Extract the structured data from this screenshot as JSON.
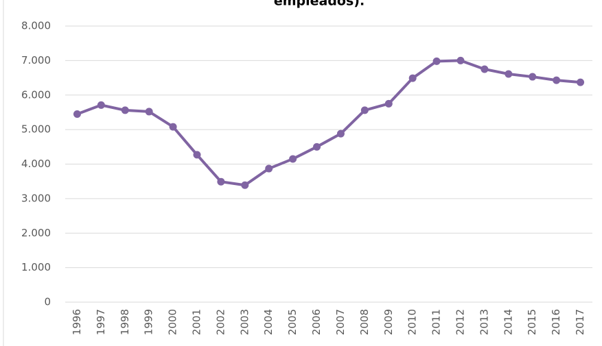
{
  "chart_data": {
    "type": "line",
    "title": "empleados).",
    "categories": [
      "1996",
      "1997",
      "1998",
      "1999",
      "2000",
      "2001",
      "2002",
      "2003",
      "2004",
      "2005",
      "2006",
      "2007",
      "2008",
      "2009",
      "2010",
      "2011",
      "2012",
      "2013",
      "2014",
      "2015",
      "2016",
      "2017"
    ],
    "series": [
      {
        "color": "#8064a2",
        "values": [
          5450,
          5710,
          5560,
          5520,
          5080,
          4270,
          3490,
          3390,
          3870,
          4150,
          4500,
          4880,
          5560,
          5750,
          6490,
          6980,
          7000,
          6750,
          6610,
          6530,
          6430,
          6370
        ]
      }
    ],
    "ylim": [
      0,
      8000
    ],
    "yticks": [
      0,
      {
        "value": 1000,
        "label": "1.000"
      },
      {
        "value": 2000,
        "label": "2.000"
      },
      {
        "value": 3000,
        "label": "3.000"
      },
      {
        "value": 4000,
        "label": "4.000"
      },
      {
        "value": 5000,
        "label": "5.000"
      },
      {
        "value": 6000,
        "label": "6.000"
      },
      {
        "value": 7000,
        "label": "7.000"
      },
      {
        "value": 8000,
        "label": "8.000"
      }
    ],
    "grid": true
  }
}
